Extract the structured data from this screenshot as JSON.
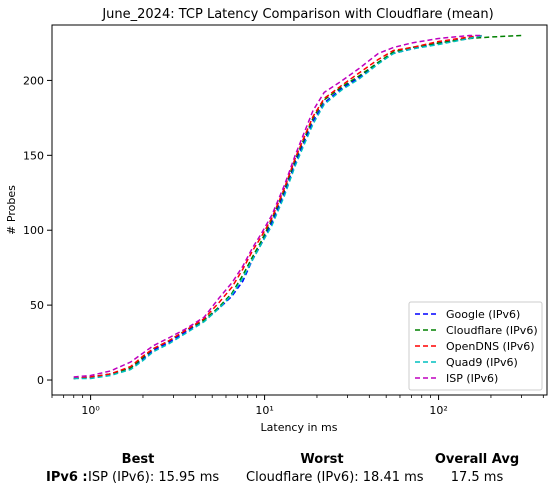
{
  "chart_data": {
    "type": "line",
    "title": "June_2024: TCP Latency Comparison with Cloudflare (mean)",
    "xlabel": "Latency in ms",
    "ylabel": "# Probes",
    "xscale": "log",
    "xlim": [
      0.6,
      420
    ],
    "ylim": [
      -10,
      237
    ],
    "xticks": [
      1,
      10,
      100
    ],
    "xtick_labels": [
      "10⁰",
      "10¹",
      "10²"
    ],
    "yticks": [
      0,
      50,
      100,
      150,
      200
    ],
    "grid": false,
    "legend_position": "lower-right",
    "series": [
      {
        "name": "Google (IPv6)",
        "color": "#0000ff",
        "points": [
          [
            0.8,
            1
          ],
          [
            1,
            2
          ],
          [
            1.3,
            4
          ],
          [
            1.7,
            8
          ],
          [
            2,
            14
          ],
          [
            2.3,
            20
          ],
          [
            2.8,
            25
          ],
          [
            3.5,
            32
          ],
          [
            4.5,
            40
          ],
          [
            5.5,
            48
          ],
          [
            6.5,
            56
          ],
          [
            7.5,
            66
          ],
          [
            8.5,
            80
          ],
          [
            9.5,
            90
          ],
          [
            11,
            105
          ],
          [
            13,
            125
          ],
          [
            15,
            145
          ],
          [
            17,
            160
          ],
          [
            19,
            173
          ],
          [
            22,
            185
          ],
          [
            28,
            195
          ],
          [
            35,
            202
          ],
          [
            45,
            212
          ],
          [
            55,
            218
          ],
          [
            70,
            221
          ],
          [
            100,
            225
          ],
          [
            150,
            228
          ],
          [
            180,
            230
          ]
        ]
      },
      {
        "name": "Cloudflare (IPv6)",
        "color": "#008000",
        "points": [
          [
            0.8,
            1
          ],
          [
            1,
            2
          ],
          [
            1.3,
            4
          ],
          [
            1.7,
            8
          ],
          [
            2,
            15
          ],
          [
            2.3,
            21
          ],
          [
            2.8,
            26
          ],
          [
            3.5,
            33
          ],
          [
            4.5,
            40
          ],
          [
            5.5,
            49
          ],
          [
            6.5,
            58
          ],
          [
            7.5,
            70
          ],
          [
            8.5,
            82
          ],
          [
            9.5,
            92
          ],
          [
            11,
            107
          ],
          [
            13,
            127
          ],
          [
            15,
            147
          ],
          [
            17,
            162
          ],
          [
            19,
            175
          ],
          [
            22,
            187
          ],
          [
            28,
            196
          ],
          [
            35,
            203
          ],
          [
            45,
            212
          ],
          [
            55,
            219
          ],
          [
            70,
            222
          ],
          [
            100,
            225
          ],
          [
            150,
            228
          ],
          [
            200,
            229
          ],
          [
            300,
            230
          ]
        ]
      },
      {
        "name": "OpenDNS (IPv6)",
        "color": "#ff0000",
        "points": [
          [
            0.8,
            1
          ],
          [
            1,
            2
          ],
          [
            1.3,
            4
          ],
          [
            1.7,
            9
          ],
          [
            2,
            16
          ],
          [
            2.3,
            21
          ],
          [
            2.8,
            26
          ],
          [
            3.5,
            33
          ],
          [
            4.5,
            41
          ],
          [
            5.5,
            52
          ],
          [
            6.5,
            62
          ],
          [
            7.5,
            74
          ],
          [
            8.5,
            86
          ],
          [
            9.5,
            95
          ],
          [
            11,
            108
          ],
          [
            13,
            128
          ],
          [
            15,
            148
          ],
          [
            17,
            163
          ],
          [
            19,
            176
          ],
          [
            22,
            188
          ],
          [
            28,
            197
          ],
          [
            35,
            205
          ],
          [
            45,
            214
          ],
          [
            55,
            220
          ],
          [
            70,
            222
          ],
          [
            100,
            226
          ],
          [
            150,
            229
          ],
          [
            180,
            230
          ]
        ]
      },
      {
        "name": "Quad9 (IPv6)",
        "color": "#00bfbf",
        "points": [
          [
            0.8,
            1
          ],
          [
            1,
            1
          ],
          [
            1.3,
            3
          ],
          [
            1.7,
            7
          ],
          [
            2,
            13
          ],
          [
            2.3,
            19
          ],
          [
            2.8,
            24
          ],
          [
            3.5,
            31
          ],
          [
            4.5,
            39
          ],
          [
            5.5,
            48
          ],
          [
            6.5,
            57
          ],
          [
            7.5,
            68
          ],
          [
            8.5,
            80
          ],
          [
            9.5,
            90
          ],
          [
            11,
            103
          ],
          [
            13,
            123
          ],
          [
            15,
            143
          ],
          [
            17,
            158
          ],
          [
            19,
            171
          ],
          [
            22,
            184
          ],
          [
            28,
            194
          ],
          [
            35,
            201
          ],
          [
            45,
            211
          ],
          [
            55,
            218
          ],
          [
            70,
            221
          ],
          [
            100,
            224
          ],
          [
            150,
            228
          ],
          [
            180,
            230
          ]
        ]
      },
      {
        "name": "ISP (IPv6)",
        "color": "#bf00bf",
        "points": [
          [
            0.8,
            2
          ],
          [
            1,
            3
          ],
          [
            1.3,
            6
          ],
          [
            1.7,
            12
          ],
          [
            2,
            18
          ],
          [
            2.3,
            23
          ],
          [
            2.8,
            28
          ],
          [
            3.5,
            34
          ],
          [
            4.5,
            42
          ],
          [
            5.5,
            55
          ],
          [
            6.5,
            65
          ],
          [
            7.5,
            76
          ],
          [
            8.5,
            88
          ],
          [
            9.5,
            97
          ],
          [
            11,
            110
          ],
          [
            13,
            130
          ],
          [
            15,
            150
          ],
          [
            17,
            166
          ],
          [
            19,
            180
          ],
          [
            22,
            192
          ],
          [
            28,
            200
          ],
          [
            35,
            208
          ],
          [
            45,
            218
          ],
          [
            55,
            222
          ],
          [
            70,
            225
          ],
          [
            100,
            228
          ],
          [
            150,
            230
          ],
          [
            180,
            230
          ]
        ]
      }
    ]
  },
  "summary": {
    "headers": {
      "best": "Best",
      "worst": "Worst",
      "overall": "Overall Avg"
    },
    "row_label": "IPv6 :",
    "best_value": "ISP (IPv6): 15.95 ms",
    "worst_value": "Cloudflare (IPv6): 18.41 ms",
    "overall_value": "17.5 ms"
  }
}
